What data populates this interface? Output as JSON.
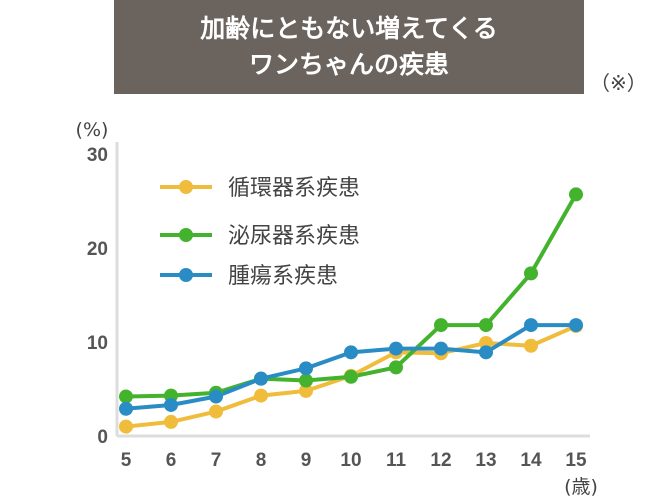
{
  "title": {
    "line1": "加齢にともない増えてくる",
    "line2": "ワンちゃんの疾患"
  },
  "note": "（※）",
  "chart_data": {
    "type": "line",
    "x": [
      5,
      6,
      7,
      8,
      9,
      10,
      11,
      12,
      13,
      14,
      15
    ],
    "x_tick_labels": [
      "5",
      "6",
      "7",
      "8",
      "9",
      "10",
      "11",
      "12",
      "13",
      "14",
      "15"
    ],
    "xlabel": "(歳)",
    "ylabel": "(%)",
    "ylim": [
      0,
      30
    ],
    "y_ticks": [
      0,
      10,
      20,
      30
    ],
    "y_tick_labels": [
      "0",
      "10",
      "20",
      "30"
    ],
    "grid": false,
    "legend_position": "top-left",
    "series": [
      {
        "name": "循環器系疾患",
        "color": "#f0bc3c",
        "values": [
          1.0,
          1.5,
          2.6,
          4.3,
          4.8,
          6.4,
          8.9,
          8.8,
          9.9,
          9.6,
          11.7
        ]
      },
      {
        "name": "泌尿器系疾患",
        "color": "#43b32d",
        "values": [
          4.2,
          4.3,
          4.6,
          6.1,
          5.9,
          6.3,
          7.3,
          11.8,
          11.8,
          17.3,
          25.7
        ]
      },
      {
        "name": "腫瘍系疾患",
        "color": "#2a8cc4",
        "values": [
          2.9,
          3.3,
          4.2,
          6.1,
          7.2,
          8.9,
          9.3,
          9.3,
          8.9,
          11.8,
          11.8
        ]
      }
    ]
  }
}
